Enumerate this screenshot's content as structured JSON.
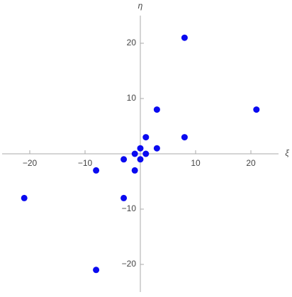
{
  "chart_data": {
    "type": "scatter",
    "x_label": "ξ",
    "y_label": "η",
    "series": [
      {
        "color": "#0a0af0",
        "x": [
          8,
          3,
          21,
          8,
          1,
          3,
          0,
          1,
          -1,
          0,
          -3,
          -1,
          -8,
          -3,
          -21,
          -8
        ],
        "values": [
          21,
          8,
          8,
          3,
          3,
          1,
          1,
          0,
          0,
          -1,
          -1,
          -3,
          -3,
          -8,
          -8,
          -21
        ]
      }
    ],
    "xlim": [
      -25,
      25
    ],
    "ylim": [
      -25,
      25
    ],
    "xticks": [
      {
        "value": -20,
        "label": "−20"
      },
      {
        "value": -10,
        "label": "−10"
      },
      10,
      20
    ],
    "yticks": [
      {
        "value": -20,
        "label": "−20"
      },
      {
        "value": -10,
        "label": "−10"
      },
      10,
      20
    ]
  }
}
